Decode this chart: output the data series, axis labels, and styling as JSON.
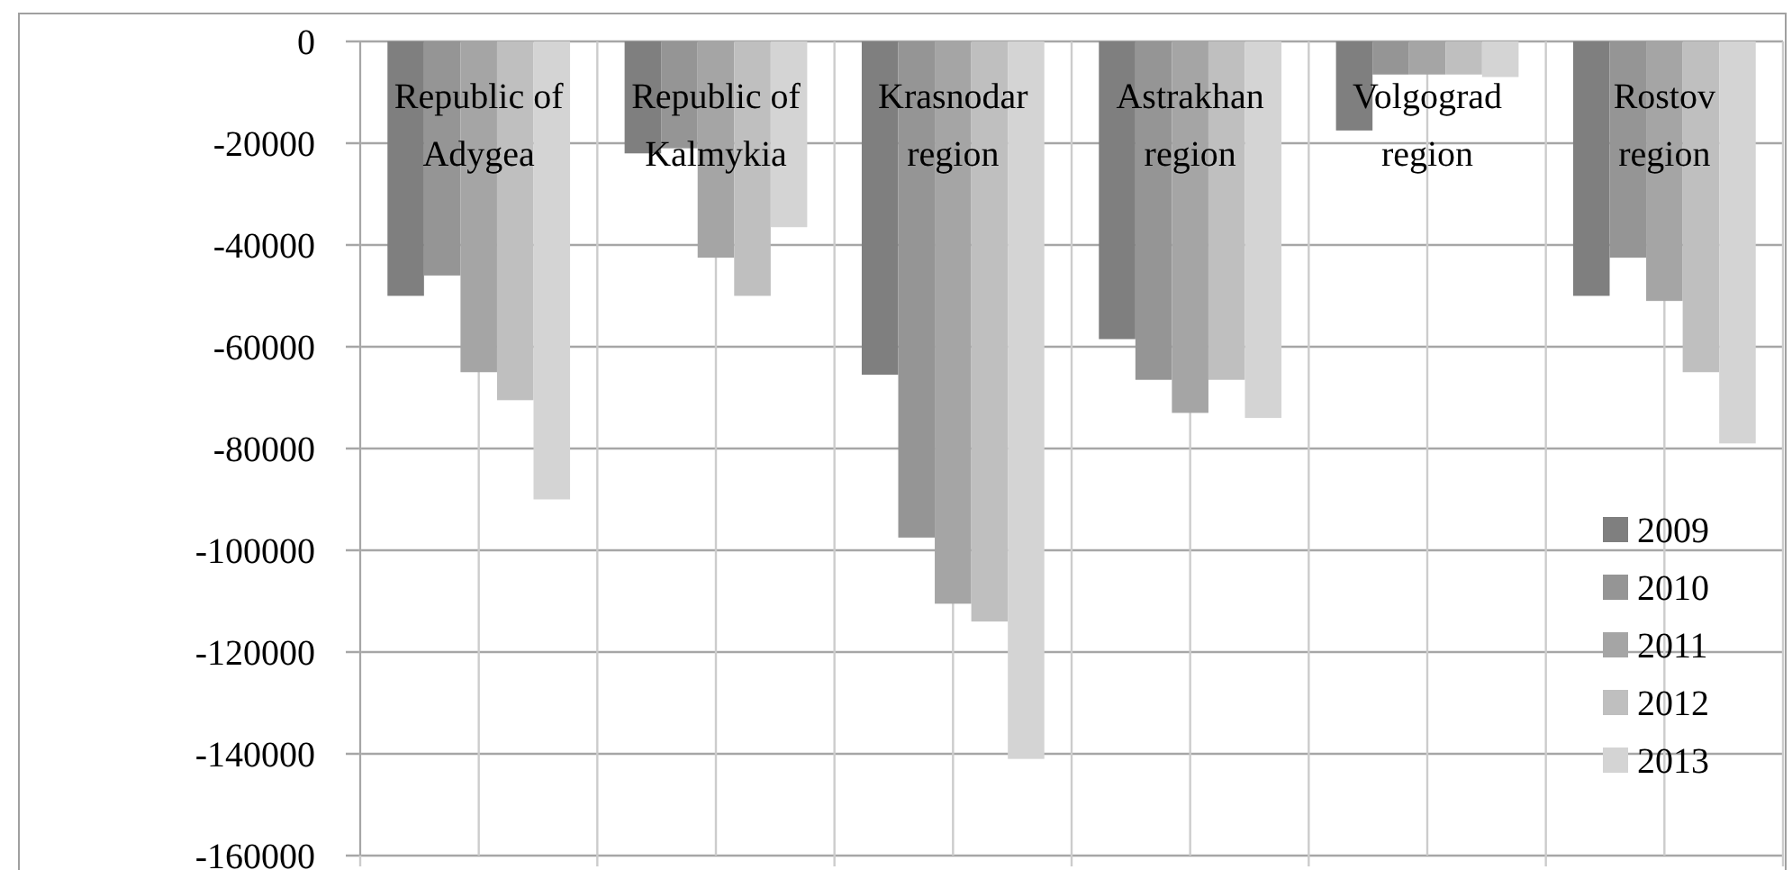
{
  "chart_data": {
    "type": "bar",
    "categories": [
      "Republic of Adygea",
      "Republic of Kalmykia",
      "Krasnodar region",
      "Astrakhan region",
      "Volgograd region",
      "Rostov region"
    ],
    "series": [
      {
        "name": "2009",
        "color": "#7f7f7f",
        "values": [
          -50000,
          -22000,
          -65500,
          -58500,
          -17500,
          -50000
        ]
      },
      {
        "name": "2010",
        "color": "#959595",
        "values": [
          -46000,
          -21000,
          -97500,
          -66500,
          -6500,
          -42500
        ]
      },
      {
        "name": "2011",
        "color": "#a5a5a5",
        "values": [
          -65000,
          -42500,
          -110500,
          -73000,
          -6500,
          -51000
        ]
      },
      {
        "name": "2012",
        "color": "#bfbfbf",
        "values": [
          -70500,
          -50000,
          -114000,
          -66500,
          -6500,
          -65000
        ]
      },
      {
        "name": "2013",
        "color": "#d4d4d4",
        "values": [
          -90000,
          -36500,
          -141000,
          -74000,
          -7000,
          -79000
        ]
      }
    ],
    "ylim": [
      -160000,
      0
    ],
    "yticks": [
      0,
      -20000,
      -40000,
      -60000,
      -80000,
      -100000,
      -120000,
      -140000,
      -160000
    ],
    "grid": true,
    "legend": "bottom right"
  }
}
